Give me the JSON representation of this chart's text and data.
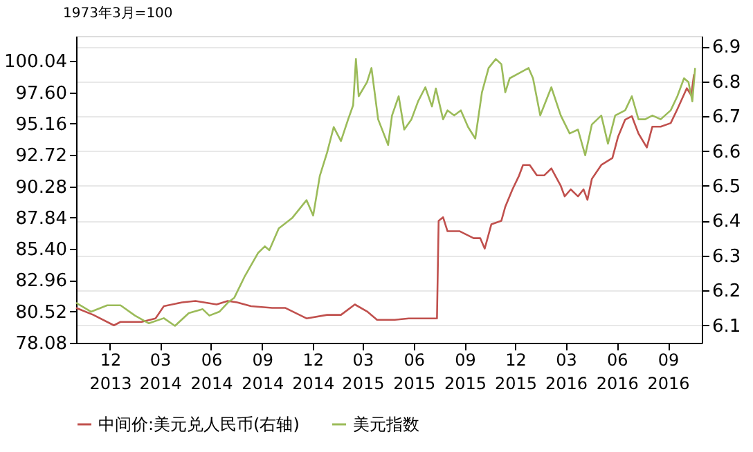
{
  "chart_data": {
    "type": "line",
    "ylabel": "1973年3月=100",
    "legend": "bottom",
    "grid": true,
    "xlim": [
      "2013-10-01",
      "2016-11-01"
    ],
    "xticks": [
      {
        "value": "2013-12-01",
        "label": "12\n2013"
      },
      {
        "value": "2014-03-01",
        "label": "03\n2014"
      },
      {
        "value": "2014-06-01",
        "label": "06\n2014"
      },
      {
        "value": "2014-09-01",
        "label": "09\n2014"
      },
      {
        "value": "2014-12-01",
        "label": "12\n2014"
      },
      {
        "value": "2015-03-01",
        "label": "03\n2015"
      },
      {
        "value": "2015-06-01",
        "label": "06\n2015"
      },
      {
        "value": "2015-09-01",
        "label": "09\n2015"
      },
      {
        "value": "2015-12-01",
        "label": "12\n2015"
      },
      {
        "value": "2016-03-01",
        "label": "03\n2016"
      },
      {
        "value": "2016-06-01",
        "label": "06\n2016"
      },
      {
        "value": "2016-09-01",
        "label": "09\n2016"
      }
    ],
    "ylim": [
      78.08,
      102.0
    ],
    "yticks": [
      78.08,
      80.52,
      82.96,
      {
        "value": 85.4,
        "label": "85.40"
      },
      87.84,
      90.28,
      92.72,
      95.16,
      {
        "value": 97.6,
        "label": "97.60"
      },
      100.04
    ],
    "y2lim": [
      6.05,
      6.93
    ],
    "y2ticks": [
      6.1,
      6.2,
      6.3,
      6.4,
      6.5,
      6.6,
      6.7,
      6.8,
      6.9
    ],
    "series": [
      {
        "name": "中间价:美元兑人民币(右轴)",
        "color": "#c0504d",
        "axis": "y2",
        "x": [
          "2013-10-01",
          "2013-11-01",
          "2013-12-08",
          "2013-12-20",
          "2014-01-27",
          "2014-02-21",
          "2014-03-08",
          "2014-04-10",
          "2014-05-04",
          "2014-06-11",
          "2014-07-01",
          "2014-07-18",
          "2014-08-12",
          "2014-09-19",
          "2014-10-13",
          "2014-11-20",
          "2014-12-27",
          "2015-01-21",
          "2015-02-15",
          "2015-03-09",
          "2015-03-27",
          "2015-04-28",
          "2015-05-23",
          "2015-07-13",
          "2015-07-16",
          "2015-07-24",
          "2015-08-01",
          "2015-08-23",
          "2015-09-17",
          "2015-09-29",
          "2015-10-07",
          "2015-10-19",
          "2015-11-06",
          "2015-11-13",
          "2015-11-26",
          "2015-12-08",
          "2015-12-15",
          "2015-12-27",
          "2016-01-09",
          "2016-01-22",
          "2016-02-04",
          "2016-02-21",
          "2016-02-28",
          "2016-03-10",
          "2016-03-23",
          "2016-04-02",
          "2016-04-09",
          "2016-04-17",
          "2016-05-04",
          "2016-05-24",
          "2016-06-03",
          "2016-06-16",
          "2016-06-28",
          "2016-07-10",
          "2016-07-25",
          "2016-08-04",
          "2016-08-19",
          "2016-09-06",
          "2016-09-18",
          "2016-10-05",
          "2016-10-13",
          "2016-10-18"
        ],
        "values": [
          6.15,
          6.13,
          6.1,
          6.11,
          6.11,
          6.12,
          6.155,
          6.166,
          6.17,
          6.16,
          6.17,
          6.166,
          6.155,
          6.15,
          6.15,
          6.12,
          6.13,
          6.13,
          6.16,
          6.14,
          6.116,
          6.116,
          6.12,
          6.12,
          6.4,
          6.41,
          6.37,
          6.37,
          6.35,
          6.35,
          6.32,
          6.39,
          6.4,
          6.44,
          6.49,
          6.53,
          6.56,
          6.56,
          6.53,
          6.53,
          6.55,
          6.5,
          6.47,
          6.49,
          6.47,
          6.49,
          6.46,
          6.52,
          6.56,
          6.58,
          6.64,
          6.69,
          6.7,
          6.65,
          6.61,
          6.67,
          6.67,
          6.68,
          6.72,
          6.78,
          6.76,
          6.82
        ]
      },
      {
        "name": "美元指数",
        "color": "#9bbb59",
        "x": [
          "2013-10-01",
          "2013-10-28",
          "2013-11-26",
          "2013-12-20",
          "2014-01-15",
          "2014-02-09",
          "2014-03-08",
          "2014-03-28",
          "2014-04-22",
          "2014-05-17",
          "2014-05-29",
          "2014-06-16",
          "2014-07-01",
          "2014-07-13",
          "2014-07-31",
          "2014-08-25",
          "2014-09-06",
          "2014-09-14",
          "2014-10-01",
          "2014-10-25",
          "2014-11-20",
          "2014-12-02",
          "2014-12-14",
          "2014-12-27",
          "2015-01-08",
          "2015-01-21",
          "2015-02-03",
          "2015-02-12",
          "2015-02-17",
          "2015-02-22",
          "2015-03-09",
          "2015-03-17",
          "2015-03-29",
          "2015-04-16",
          "2015-04-23",
          "2015-05-05",
          "2015-05-15",
          "2015-05-28",
          "2015-06-09",
          "2015-06-22",
          "2015-07-04",
          "2015-07-11",
          "2015-07-24",
          "2015-08-01",
          "2015-08-13",
          "2015-08-25",
          "2015-09-07",
          "2015-09-20",
          "2015-10-02",
          "2015-10-14",
          "2015-10-27",
          "2015-11-06",
          "2015-11-13",
          "2015-11-21",
          "2015-12-08",
          "2015-12-25",
          "2016-01-02",
          "2016-01-15",
          "2016-02-04",
          "2016-02-21",
          "2016-03-08",
          "2016-03-23",
          "2016-04-05",
          "2016-04-17",
          "2016-05-04",
          "2016-05-16",
          "2016-05-29",
          "2016-06-16",
          "2016-06-28",
          "2016-07-10",
          "2016-07-22",
          "2016-08-04",
          "2016-08-19",
          "2016-09-06",
          "2016-09-18",
          "2016-09-30",
          "2016-10-08",
          "2016-10-15",
          "2016-10-20"
        ],
        "values": [
          81.2,
          80.5,
          81.0,
          81.0,
          80.2,
          79.6,
          80.0,
          79.4,
          80.4,
          80.7,
          80.2,
          80.5,
          81.2,
          81.6,
          83.2,
          85.1,
          85.6,
          85.3,
          87.0,
          87.8,
          89.2,
          88.0,
          91.1,
          92.9,
          94.9,
          93.8,
          95.5,
          96.6,
          100.2,
          97.3,
          98.4,
          99.5,
          95.5,
          93.5,
          95.8,
          97.3,
          94.7,
          95.5,
          96.9,
          98.0,
          96.5,
          97.9,
          95.5,
          96.2,
          95.8,
          96.2,
          94.9,
          94.0,
          97.6,
          99.5,
          100.2,
          99.8,
          97.6,
          98.7,
          99.1,
          99.5,
          98.7,
          95.8,
          98.0,
          95.8,
          94.4,
          94.7,
          92.7,
          95.1,
          95.8,
          93.6,
          95.8,
          96.2,
          97.3,
          95.5,
          95.5,
          95.8,
          95.5,
          96.2,
          97.3,
          98.7,
          98.4,
          96.9,
          99.5
        ]
      }
    ]
  }
}
